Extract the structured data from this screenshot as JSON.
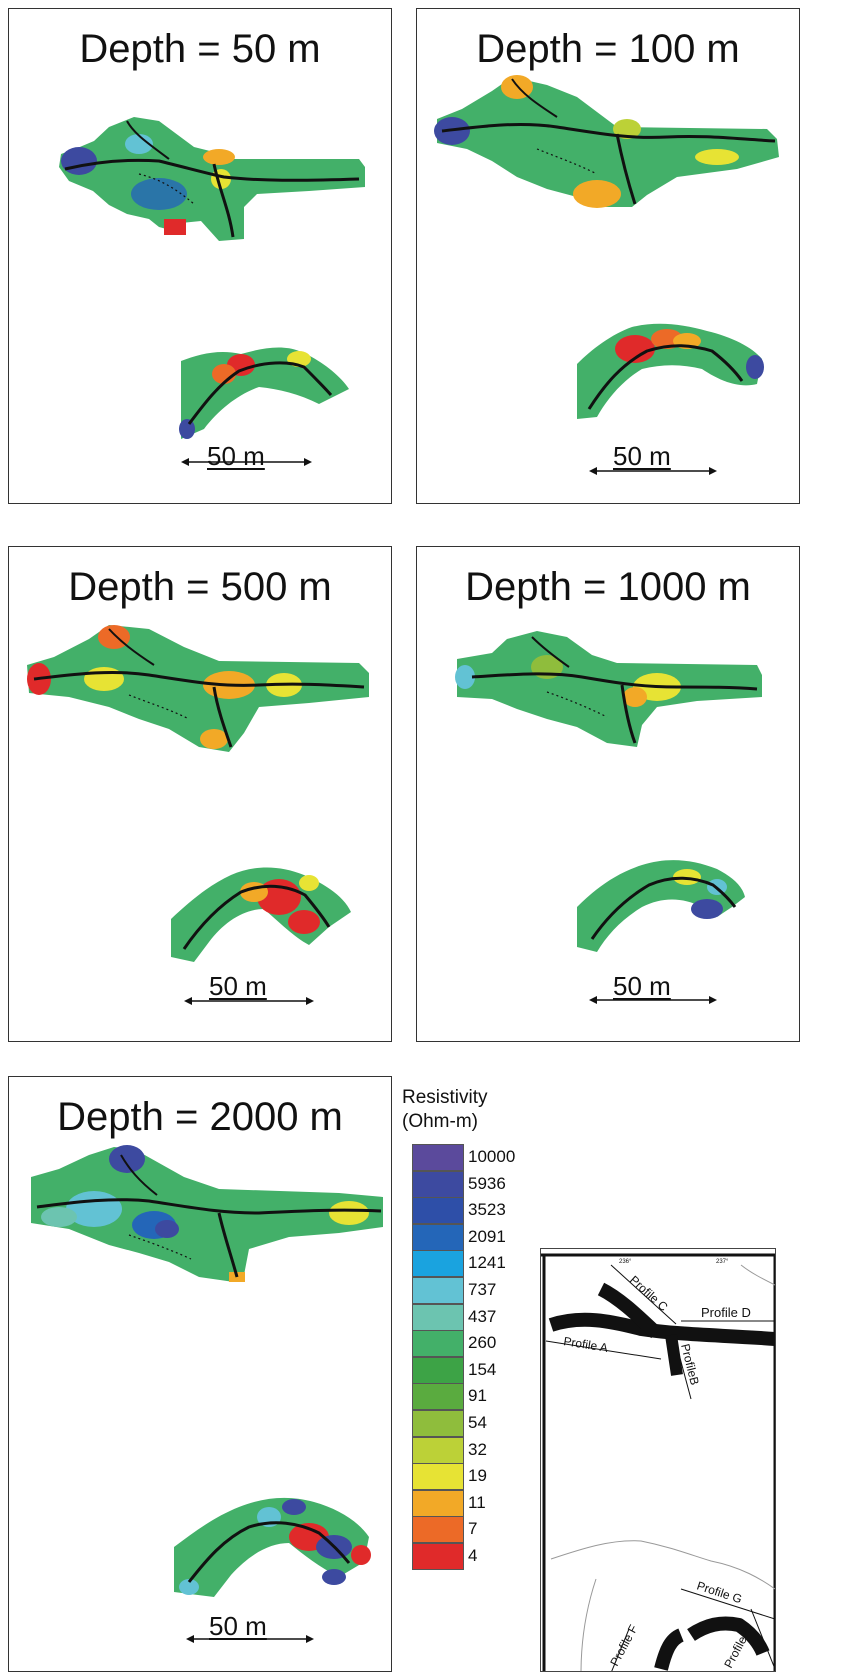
{
  "panels": [
    {
      "title": "Depth = 50 m",
      "scale": "50 m"
    },
    {
      "title": "Depth = 100 m",
      "scale": "50 m"
    },
    {
      "title": "Depth = 500 m",
      "scale": "50 m"
    },
    {
      "title": "Depth = 1000 m",
      "scale": "50 m"
    },
    {
      "title": "Depth = 2000 m",
      "scale": "50 m"
    }
  ],
  "legend": {
    "title_line1": "Resistivity",
    "title_line2": "(Ohm-m)",
    "items": [
      {
        "label": "10000",
        "color": "#5b4a9c"
      },
      {
        "label": "5936",
        "color": "#3d4aa0"
      },
      {
        "label": "3523",
        "color": "#2e4fa8"
      },
      {
        "label": "2091",
        "color": "#2466b8"
      },
      {
        "label": "1241",
        "color": "#1aa3df"
      },
      {
        "label": "737",
        "color": "#62c2d4"
      },
      {
        "label": "437",
        "color": "#6cc4b0"
      },
      {
        "label": "260",
        "color": "#43b069"
      },
      {
        "label": "154",
        "color": "#3da346"
      },
      {
        "label": "91",
        "color": "#5aab3f"
      },
      {
        "label": "54",
        "color": "#8fbd3c"
      },
      {
        "label": "32",
        "color": "#bcd137"
      },
      {
        "label": "19",
        "color": "#e7e334"
      },
      {
        "label": "11",
        "color": "#f2a927"
      },
      {
        "label": "7",
        "color": "#ec6a27"
      },
      {
        "label": "4",
        "color": "#e02a2a"
      }
    ]
  },
  "inset": {
    "profiles": [
      "Profile C",
      "Profile D",
      "Profile A",
      "ProfileB",
      "Profile G",
      "Profile F",
      "ProfileH"
    ],
    "ticks": [
      "236°",
      "237°"
    ]
  }
}
